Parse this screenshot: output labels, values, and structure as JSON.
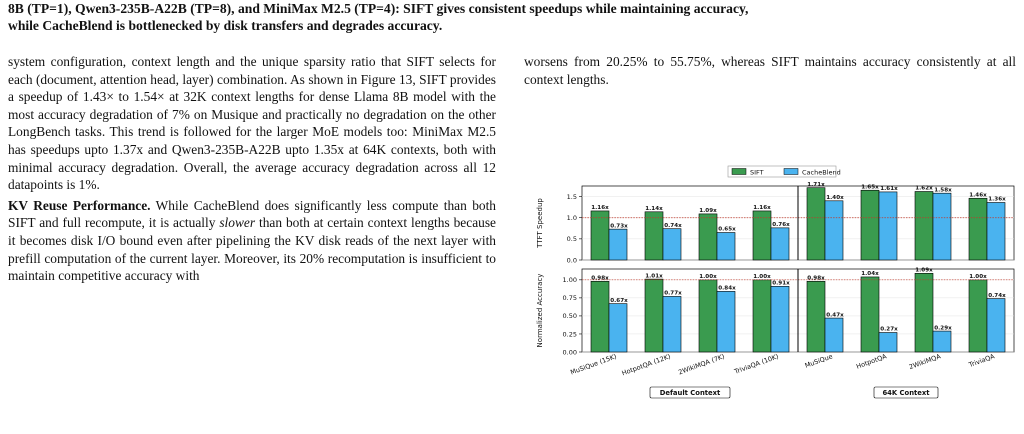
{
  "caption": {
    "line1": "8B (TP=1), Qwen3-235B-A22B (TP=8), and MiniMax M2.5 (TP=4): SIFT gives consistent speedups while maintaining accuracy,",
    "line2": "while CacheBlend is bottlenecked by disk transfers and degrades accuracy."
  },
  "left_column": {
    "para1": "system configuration, context length and the unique sparsity ratio that SIFT selects for each (document, attention head, layer) combination. As shown in Figure 13, SIFT provides a speedup of 1.43× to 1.54× at 32K context lengths for dense Llama 8B model with the most accuracy degradation of 7% on Musique and practically no degradation on the other LongBench tasks. This trend is followed for the larger MoE models too: MiniMax M2.5 has speedups upto 1.37x and Qwen3-235B-A22B upto 1.35x at 64K contexts, both with minimal accuracy degradation. Overall, the average accuracy degradation across all 12 datapoints is 1%.",
    "kv_heading": "KV Reuse Performance.",
    "kv_text_a": " While CacheBlend does significantly less compute than both SIFT and full recompute, it is actually ",
    "kv_italic": "slower",
    "kv_text_b": " than both at certain context lengths because it becomes disk I/O bound even after pipelining the KV disk reads of the next layer with prefill computation of the current layer. Moreover, its 20% recomputation is insufficient to maintain competitive accuracy with"
  },
  "right_column": {
    "para1": "worsens from 20.25% to 55.75%, whereas SIFT maintains accuracy consistently at all context lengths."
  },
  "chart_data": {
    "type": "bar",
    "legend_position": "top-center",
    "series_colors": {
      "SIFT": "#3a9b4f",
      "CacheBlend": "#4ab3ef"
    },
    "categories": [
      "MuSiQue (15K)",
      "HotpotQA (12K)",
      "2WikiMQA (7K)",
      "TriviaQA (10K)",
      "MuSiQue",
      "HotpotQA",
      "2WikiMQA",
      "TriviaQA"
    ],
    "groups": [
      {
        "label": "Default Context",
        "categories": [
          0,
          1,
          2,
          3
        ]
      },
      {
        "label": "64K Context",
        "categories": [
          4,
          5,
          6,
          7
        ]
      }
    ],
    "panels": [
      {
        "ylabel": "TTFT Speedup",
        "ylim": [
          0,
          1.75
        ],
        "yticks": [
          "0.0",
          "0.5",
          "1.0",
          "1.5"
        ],
        "yticks_values": [
          0,
          0.5,
          1.0,
          1.5
        ],
        "reference_line": 1.0,
        "series": [
          {
            "name": "SIFT",
            "values": [
              1.16,
              1.14,
              1.09,
              1.16,
              1.71,
              1.65,
              1.62,
              1.46
            ],
            "labels": [
              "1.16x",
              "1.14x",
              "1.09x",
              "1.16x",
              "1.71x",
              "1.65x",
              "1.62x",
              "1.46x"
            ]
          },
          {
            "name": "CacheBlend",
            "values": [
              0.73,
              0.74,
              0.65,
              0.76,
              1.4,
              1.61,
              1.58,
              1.36
            ],
            "labels": [
              "0.73x",
              "0.74x",
              "0.65x",
              "0.76x",
              "1.40x",
              "1.61x",
              "1.58x",
              "1.36x"
            ]
          }
        ]
      },
      {
        "ylabel": "Normalized Accuracy",
        "ylim": [
          0,
          1.15
        ],
        "yticks": [
          "0.00",
          "0.25",
          "0.50",
          "0.75",
          "1.00"
        ],
        "yticks_values": [
          0,
          0.25,
          0.5,
          0.75,
          1.0
        ],
        "reference_line": 1.0,
        "series": [
          {
            "name": "SIFT",
            "values": [
              0.98,
              1.01,
              1.0,
              1.0,
              0.98,
              1.04,
              1.09,
              1.0
            ],
            "labels": [
              "0.98x",
              "1.01x",
              "1.00x",
              "1.00x",
              "0.98x",
              "1.04x",
              "1.09x",
              "1.00x"
            ]
          },
          {
            "name": "CacheBlend",
            "values": [
              0.67,
              0.77,
              0.84,
              0.91,
              0.47,
              0.27,
              0.29,
              0.74
            ],
            "labels": [
              "0.67x",
              "0.77x",
              "0.84x",
              "0.91x",
              "0.47x",
              "0.27x",
              "0.29x",
              "0.74x"
            ]
          }
        ]
      }
    ]
  }
}
